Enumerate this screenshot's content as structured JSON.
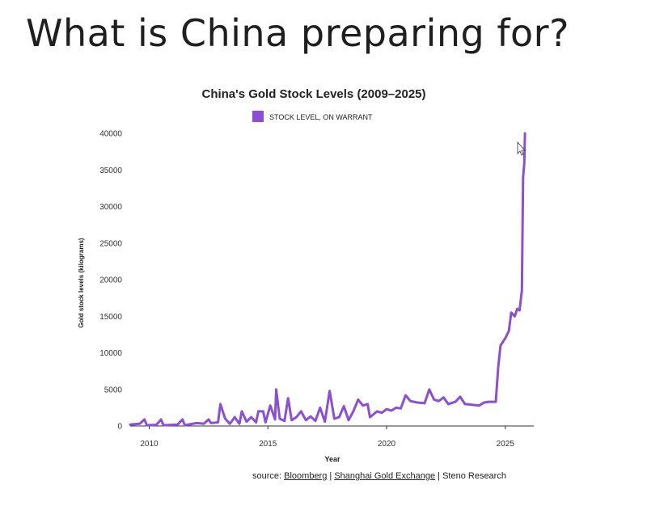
{
  "slide": {
    "title": "What is China preparing for?"
  },
  "chart_data": {
    "type": "line",
    "title": "China's Gold Stock Levels (2009–2025)",
    "xlabel": "Year",
    "ylabel": "Gold stock levels (kilograms)",
    "xlim": [
      2009.2,
      2026.2
    ],
    "ylim": [
      0,
      40000
    ],
    "x_ticks": [
      2010,
      2015,
      2020,
      2025
    ],
    "y_ticks": [
      0,
      5000,
      10000,
      15000,
      20000,
      25000,
      30000,
      35000,
      40000
    ],
    "grid": false,
    "legend": "top-center",
    "color": "#8a4fd6",
    "series": [
      {
        "name": "STOCK LEVEL, ON WARRANT",
        "points": [
          [
            2009.2,
            200
          ],
          [
            2009.6,
            300
          ],
          [
            2009.8,
            900
          ],
          [
            2009.9,
            100
          ],
          [
            2010.3,
            150
          ],
          [
            2010.5,
            900
          ],
          [
            2010.6,
            100
          ],
          [
            2011.2,
            200
          ],
          [
            2011.4,
            900
          ],
          [
            2011.5,
            100
          ],
          [
            2012.0,
            400
          ],
          [
            2012.3,
            300
          ],
          [
            2012.5,
            900
          ],
          [
            2012.6,
            400
          ],
          [
            2012.9,
            500
          ],
          [
            2013.0,
            3000
          ],
          [
            2013.2,
            1000
          ],
          [
            2013.4,
            300
          ],
          [
            2013.6,
            1200
          ],
          [
            2013.8,
            300
          ],
          [
            2013.9,
            2000
          ],
          [
            2014.1,
            600
          ],
          [
            2014.3,
            1200
          ],
          [
            2014.5,
            500
          ],
          [
            2014.6,
            2000
          ],
          [
            2014.8,
            2000
          ],
          [
            2014.9,
            500
          ],
          [
            2015.1,
            2800
          ],
          [
            2015.3,
            900
          ],
          [
            2015.35,
            5000
          ],
          [
            2015.5,
            1000
          ],
          [
            2015.7,
            700
          ],
          [
            2015.85,
            3800
          ],
          [
            2016.0,
            800
          ],
          [
            2016.2,
            1200
          ],
          [
            2016.4,
            2000
          ],
          [
            2016.6,
            800
          ],
          [
            2016.8,
            1300
          ],
          [
            2017.0,
            700
          ],
          [
            2017.2,
            2500
          ],
          [
            2017.4,
            600
          ],
          [
            2017.6,
            4800
          ],
          [
            2017.8,
            1000
          ],
          [
            2018.0,
            1200
          ],
          [
            2018.2,
            2700
          ],
          [
            2018.4,
            800
          ],
          [
            2018.6,
            2000
          ],
          [
            2018.8,
            3600
          ],
          [
            2019.0,
            2800
          ],
          [
            2019.2,
            3000
          ],
          [
            2019.3,
            1200
          ],
          [
            2019.6,
            2000
          ],
          [
            2019.8,
            1800
          ],
          [
            2020.0,
            2300
          ],
          [
            2020.2,
            2100
          ],
          [
            2020.4,
            2500
          ],
          [
            2020.6,
            2400
          ],
          [
            2020.8,
            4200
          ],
          [
            2021.0,
            3400
          ],
          [
            2021.3,
            3200
          ],
          [
            2021.6,
            3100
          ],
          [
            2021.8,
            5000
          ],
          [
            2022.0,
            3600
          ],
          [
            2022.2,
            3400
          ],
          [
            2022.4,
            3900
          ],
          [
            2022.6,
            3000
          ],
          [
            2022.9,
            3300
          ],
          [
            2023.1,
            4000
          ],
          [
            2023.3,
            3000
          ],
          [
            2023.6,
            2900
          ],
          [
            2023.9,
            2800
          ],
          [
            2024.1,
            3200
          ],
          [
            2024.3,
            3300
          ],
          [
            2024.6,
            3300
          ],
          [
            2024.7,
            8000
          ],
          [
            2024.8,
            11000
          ],
          [
            2025.0,
            12000
          ],
          [
            2025.15,
            13000
          ],
          [
            2025.25,
            15500
          ],
          [
            2025.4,
            15000
          ],
          [
            2025.5,
            16000
          ],
          [
            2025.6,
            15800
          ],
          [
            2025.7,
            18500
          ],
          [
            2025.75,
            34000
          ],
          [
            2025.8,
            36000
          ],
          [
            2025.83,
            40000
          ]
        ]
      }
    ]
  },
  "source": {
    "prefix": "source: ",
    "links": [
      "Bloomberg",
      "Shanghai Gold Exchange"
    ],
    "separator": " | ",
    "tail": "Steno Research"
  }
}
